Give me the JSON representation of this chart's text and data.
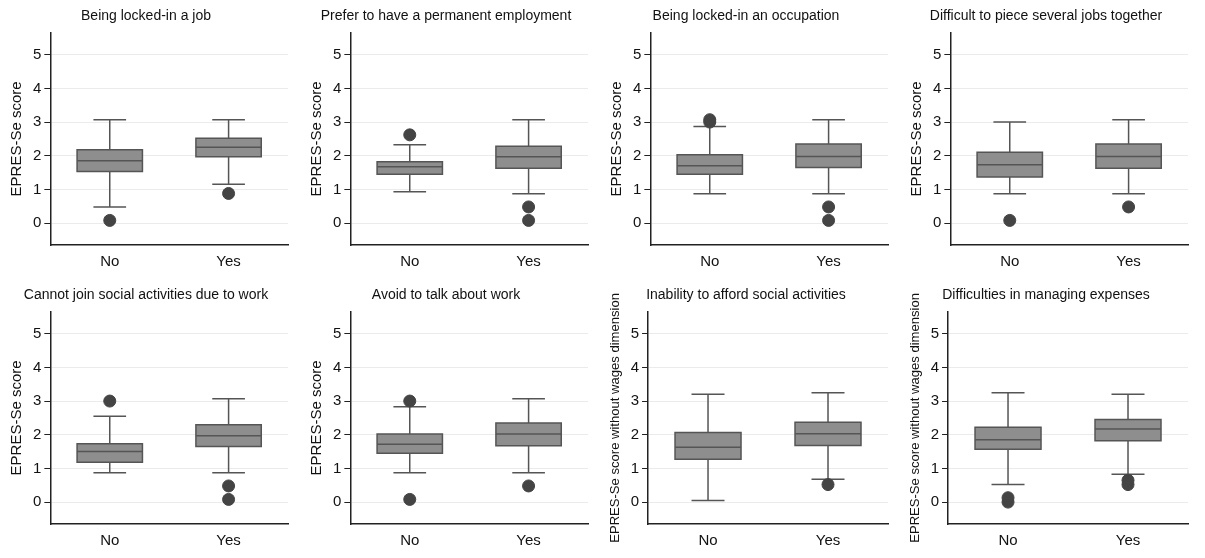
{
  "chart_data": [
    {
      "type": "box",
      "title": "Being locked-in a job",
      "ylabel": "EPRES-Se score",
      "categories": [
        "No",
        "Yes"
      ],
      "ylim": [
        -0.65,
        5.65
      ],
      "yticks": [
        0,
        1,
        2,
        3,
        4,
        5
      ],
      "grid": "y",
      "color": "#8e8e8e",
      "boxes": [
        {
          "low": 0.48,
          "q1": 1.53,
          "median": 1.85,
          "q3": 2.18,
          "high": 3.07,
          "outliers": [
            0.08
          ]
        },
        {
          "low": 1.15,
          "q1": 1.97,
          "median": 2.25,
          "q3": 2.52,
          "high": 3.07,
          "outliers": [
            0.88
          ]
        }
      ]
    },
    {
      "type": "box",
      "title": "Prefer to have a permanent employment",
      "ylabel": "EPRES-Se score",
      "categories": [
        "No",
        "Yes"
      ],
      "ylim": [
        -0.65,
        5.65
      ],
      "yticks": [
        0,
        1,
        2,
        3,
        4,
        5
      ],
      "grid": "y",
      "color": "#8e8e8e",
      "boxes": [
        {
          "low": 0.93,
          "q1": 1.45,
          "median": 1.67,
          "q3": 1.82,
          "high": 2.33,
          "outliers": [
            2.62
          ]
        },
        {
          "low": 0.87,
          "q1": 1.63,
          "median": 1.97,
          "q3": 2.28,
          "high": 3.07,
          "outliers": [
            0.48,
            0.08
          ]
        }
      ]
    },
    {
      "type": "box",
      "title": "Being locked-in an occupation",
      "ylabel": "EPRES-Se score",
      "categories": [
        "No",
        "Yes"
      ],
      "ylim": [
        -0.65,
        5.65
      ],
      "yticks": [
        0,
        1,
        2,
        3,
        4,
        5
      ],
      "grid": "y",
      "color": "#8e8e8e",
      "boxes": [
        {
          "low": 0.87,
          "q1": 1.45,
          "median": 1.7,
          "q3": 2.03,
          "high": 2.87,
          "outliers": [
            3.0,
            3.07
          ]
        },
        {
          "low": 0.87,
          "q1": 1.65,
          "median": 1.98,
          "q3": 2.35,
          "high": 3.07,
          "outliers": [
            0.48,
            0.08
          ]
        }
      ]
    },
    {
      "type": "box",
      "title": "Difficult to piece several jobs together",
      "ylabel": "EPRES-Se score",
      "categories": [
        "No",
        "Yes"
      ],
      "ylim": [
        -0.65,
        5.65
      ],
      "yticks": [
        0,
        1,
        2,
        3,
        4,
        5
      ],
      "grid": "y",
      "color": "#8e8e8e",
      "boxes": [
        {
          "low": 0.87,
          "q1": 1.37,
          "median": 1.73,
          "q3": 2.1,
          "high": 3.0,
          "outliers": [
            0.08
          ]
        },
        {
          "low": 0.87,
          "q1": 1.63,
          "median": 1.98,
          "q3": 2.35,
          "high": 3.07,
          "outliers": [
            0.48
          ]
        }
      ]
    },
    {
      "type": "box",
      "title": "Cannot join social activities due to work",
      "ylabel": "EPRES-Se score",
      "categories": [
        "No",
        "Yes"
      ],
      "ylim": [
        -0.65,
        5.65
      ],
      "yticks": [
        0,
        1,
        2,
        3,
        4,
        5
      ],
      "grid": "y",
      "color": "#8e8e8e",
      "boxes": [
        {
          "low": 0.87,
          "q1": 1.18,
          "median": 1.5,
          "q3": 1.73,
          "high": 2.55,
          "outliers": [
            3.0
          ]
        },
        {
          "low": 0.87,
          "q1": 1.65,
          "median": 1.97,
          "q3": 2.3,
          "high": 3.07,
          "outliers": [
            0.48,
            0.08
          ]
        }
      ]
    },
    {
      "type": "box",
      "title": "Avoid to talk about work",
      "ylabel": "EPRES-Se score",
      "categories": [
        "No",
        "Yes"
      ],
      "ylim": [
        -0.65,
        5.65
      ],
      "yticks": [
        0,
        1,
        2,
        3,
        4,
        5
      ],
      "grid": "y",
      "color": "#8e8e8e",
      "boxes": [
        {
          "low": 0.87,
          "q1": 1.45,
          "median": 1.72,
          "q3": 2.02,
          "high": 2.83,
          "outliers": [
            3.0,
            0.08
          ]
        },
        {
          "low": 0.87,
          "q1": 1.67,
          "median": 2.02,
          "q3": 2.35,
          "high": 3.07,
          "outliers": [
            0.48
          ]
        }
      ]
    },
    {
      "type": "box",
      "title": "Inability to afford social activities",
      "ylabel": "EPRES-Se score without wages dimension",
      "categories": [
        "No",
        "Yes"
      ],
      "ylim": [
        -0.65,
        5.65
      ],
      "yticks": [
        0,
        1,
        2,
        3,
        4,
        5
      ],
      "grid": "y",
      "color": "#8e8e8e",
      "boxes": [
        {
          "low": 0.05,
          "q1": 1.27,
          "median": 1.63,
          "q3": 2.07,
          "high": 3.2
        },
        {
          "low": 0.68,
          "q1": 1.68,
          "median": 2.03,
          "q3": 2.37,
          "high": 3.25,
          "outliers": [
            0.52
          ]
        }
      ]
    },
    {
      "type": "box",
      "title": "Difficulties in managing expenses",
      "ylabel": "EPRES-Se score without wages dimension",
      "categories": [
        "No",
        "Yes"
      ],
      "ylim": [
        -0.65,
        5.65
      ],
      "yticks": [
        0,
        1,
        2,
        3,
        4,
        5
      ],
      "grid": "y",
      "color": "#8e8e8e",
      "boxes": [
        {
          "low": 0.52,
          "q1": 1.57,
          "median": 1.85,
          "q3": 2.22,
          "high": 3.25,
          "outliers": [
            0.0,
            0.13
          ]
        },
        {
          "low": 0.83,
          "q1": 1.82,
          "median": 2.17,
          "q3": 2.45,
          "high": 3.2,
          "outliers": [
            0.52,
            0.65
          ]
        }
      ]
    }
  ]
}
